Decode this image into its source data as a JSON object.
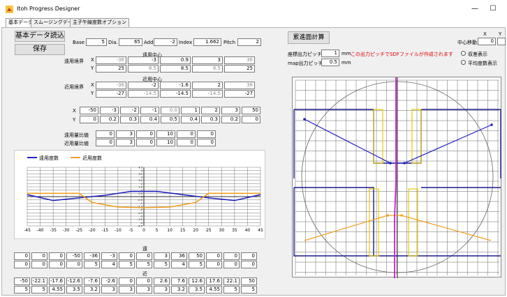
{
  "window": {
    "title": "Itoh Progress Designer",
    "controls": {
      "minimize": "—",
      "maximize": "☐",
      "close": "✕"
    }
  },
  "tabs": [
    "基本データ",
    "スムージングデータ",
    "主子午線度数オプション"
  ],
  "buttons": {
    "load": "基本データ読込",
    "save": "保存",
    "calc": "累進面計算"
  },
  "params": {
    "base_label": "Base",
    "base": "5",
    "dia_label": "Dia.",
    "dia": "65",
    "add_label": "Add.",
    "add": "-2",
    "index_label": "Index",
    "index": "1.662",
    "pitch_label": "Pitch",
    "pitch": "2"
  },
  "far": {
    "center_label": "遠用中心",
    "boundary_label": "遠用境界",
    "x_label": "X",
    "y_label": "Y",
    "x": [
      "-36",
      "-3",
      "0.9",
      "3",
      "36"
    ],
    "y": [
      "25",
      "8.5",
      "8.5",
      "8.5",
      "25"
    ]
  },
  "near": {
    "center_label": "近用中心",
    "boundary_label": "近用境界",
    "x_label": "X",
    "y_label": "Y",
    "x": [
      "-36",
      "-2",
      "-1.6",
      "2",
      "36"
    ],
    "y": [
      "-27",
      "-14.5",
      "-14.5",
      "-14.5",
      "-27"
    ]
  },
  "xy_table": {
    "x_label": "X",
    "y_label": "Y",
    "x": [
      "-50",
      "-3",
      "-2",
      "-1",
      "0.0",
      "1",
      "2",
      "3",
      "50"
    ],
    "y": [
      "0",
      "0.2",
      "0.3",
      "0.4",
      "0.5",
      "0.4",
      "0.3",
      "0.2",
      "0"
    ]
  },
  "ratio": {
    "far_label": "遠用量比値",
    "far": [
      "0",
      "3",
      "0",
      "10",
      "0",
      "0"
    ],
    "near_label": "近用量比値",
    "near": [
      "0",
      "3",
      "0",
      "10",
      "0",
      "0"
    ]
  },
  "chart_data": {
    "type": "line",
    "legend": [
      "遠用度数",
      "近用度数"
    ],
    "x_ticks": [
      "-45",
      "-40",
      "-35",
      "-30",
      "-25",
      "-20",
      "-15",
      "-10",
      "-5",
      "0",
      "5",
      "10",
      "15",
      "20",
      "25",
      "30",
      "35",
      "40",
      "45"
    ],
    "y_ticks": [
      "-4.5",
      "-4",
      "-3.5",
      "-3",
      "-2.5",
      "-2",
      "-1.5",
      "-1",
      "-0.5",
      "0",
      "0.5",
      "1",
      "1.5",
      "2",
      "2.5",
      "3",
      "3.5",
      "4",
      "4.5"
    ],
    "xlim": [
      -45,
      45
    ],
    "ylim": [
      -4.5,
      4.5
    ],
    "series": [
      {
        "name": "遠用度数",
        "color": "#2020c0",
        "x": [
          -45,
          -35,
          -25,
          -15,
          -5,
          0,
          5,
          15,
          25,
          35,
          45
        ],
        "y": [
          0.3,
          -0.6,
          -0.2,
          0.2,
          0.8,
          0.8,
          0.8,
          0.3,
          -0.2,
          -0.6,
          0.3
        ]
      },
      {
        "name": "近用度数",
        "color": "#f0a020",
        "x": [
          -45,
          -25,
          -20,
          -10,
          0,
          10,
          20,
          25,
          45
        ],
        "y": [
          0.5,
          0.5,
          -0.9,
          -1.6,
          -1.7,
          -1.6,
          -0.9,
          0.5,
          0.5
        ]
      }
    ]
  },
  "bottom": {
    "far_label": "遠",
    "far_row1": [
      "0",
      "0",
      "0",
      "-50",
      "-36",
      "-3",
      "0",
      "0",
      "3",
      "36",
      "50",
      "0",
      "0",
      "0"
    ],
    "far_row2": [
      "0",
      "0",
      "0",
      "0",
      "5",
      "4",
      "5",
      "5",
      "5",
      "4",
      "5",
      "0",
      "0",
      "0"
    ],
    "near_label": "近",
    "near_row1": [
      "-50",
      "-22.1",
      "-17.6",
      "-12.6",
      "-7.6",
      "-2.6",
      "0",
      "0",
      "2.6",
      "7.6",
      "12.6",
      "17.6",
      "22.1",
      "50"
    ],
    "near_row2": [
      "5",
      "5",
      "4.55",
      "3.5",
      "3.2",
      "3",
      "3",
      "3",
      "3",
      "3.2",
      "3.5",
      "4.55",
      "5",
      "5"
    ]
  },
  "right": {
    "center_move_label": "中心移動",
    "center_x_label": "X",
    "center_y_label": "Y",
    "center_x": "0",
    "coord_pitch_label": "座標出力ピッチ",
    "coord_pitch": "1",
    "coord_unit": "mm",
    "coord_note": "この出力ピッチでSDFファイルが作成されます",
    "map_pitch_label": "map出力ピッチ",
    "map_pitch": "0.5",
    "map_unit": "mm",
    "radio_wave_label": "収差表示",
    "radio_avg_label": "平均度数表示"
  },
  "lens": {
    "far_color": "#1a1a8c",
    "near_color": "#f0a020",
    "zone_color": "#e8c800",
    "meridian_color": "#d020d0"
  }
}
